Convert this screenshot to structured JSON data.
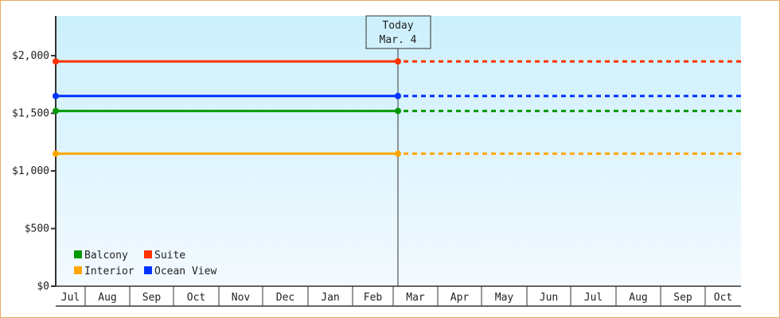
{
  "chart_data": {
    "type": "line",
    "categories": [
      "Jul",
      "Aug",
      "Sep",
      "Oct",
      "Nov",
      "Dec",
      "Jan",
      "Feb",
      "Mar",
      "Apr",
      "May",
      "Jun",
      "Jul",
      "Aug",
      "Sep",
      "Oct"
    ],
    "yticks": [
      0,
      500,
      1000,
      1500,
      2000
    ],
    "ytick_labels": [
      "$0",
      "$500",
      "$1,000",
      "$1,500",
      "$2,000"
    ],
    "ylim": [
      0,
      2350
    ],
    "today": {
      "line1": "Today",
      "line2": "Mar. 4"
    },
    "series": [
      {
        "name": "Balcony",
        "color": "#009900",
        "value": 1520
      },
      {
        "name": "Suite",
        "color": "#ff3300",
        "value": 1950
      },
      {
        "name": "Interior",
        "color": "#ffa500",
        "value": 1150
      },
      {
        "name": "Ocean View",
        "color": "#0033ff",
        "value": 1650
      }
    ],
    "legend_placement": "bottom-left",
    "note": ""
  },
  "colors": {
    "bg_top": "#cbf0fc",
    "bg_bottom": "#f3faff",
    "border": "#e8a860"
  }
}
